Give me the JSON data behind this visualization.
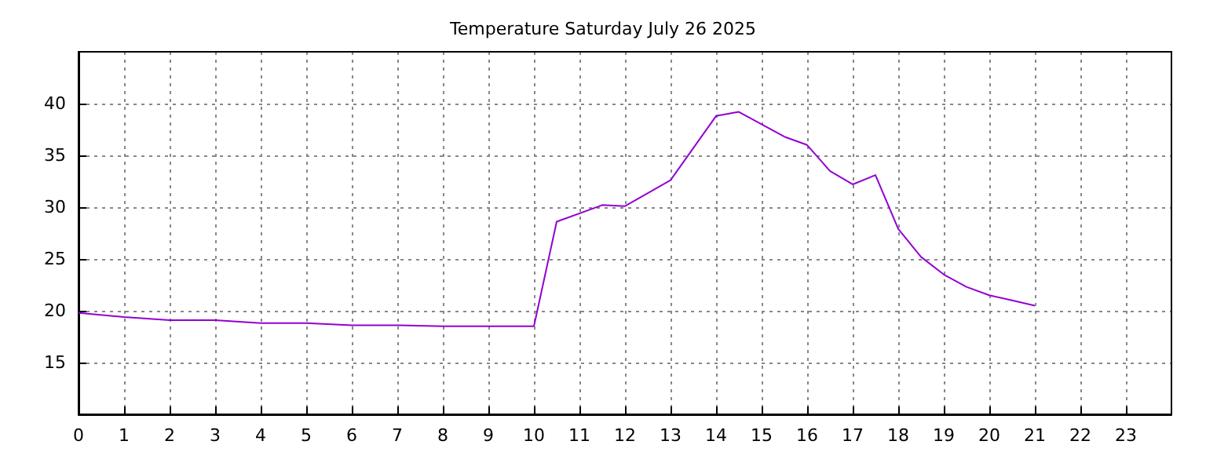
{
  "chart_data": {
    "type": "line",
    "title": "Temperature Saturday July 26 2025",
    "x": [
      0,
      1,
      2,
      3,
      4,
      5,
      6,
      7,
      8,
      9,
      10,
      10.5,
      11.5,
      12,
      13,
      14,
      14.5,
      15.5,
      16,
      16.5,
      17,
      17.5,
      18,
      18.5,
      19,
      19.5,
      20,
      20.5,
      21
    ],
    "series": [
      {
        "color": "#9400d3",
        "values": [
          19.8,
          19.4,
          19.1,
          19.1,
          18.8,
          18.8,
          18.6,
          18.6,
          18.5,
          18.5,
          18.5,
          28.6,
          30.2,
          30.1,
          32.6,
          38.8,
          39.2,
          36.8,
          36.0,
          33.5,
          32.2,
          33.1,
          27.9,
          25.2,
          23.5,
          22.3,
          21.5,
          21.0,
          20.5
        ]
      }
    ],
    "xlim": [
      0,
      24
    ],
    "xticks": [
      0,
      1,
      2,
      3,
      4,
      5,
      6,
      7,
      8,
      9,
      10,
      11,
      12,
      13,
      14,
      15,
      16,
      17,
      18,
      19,
      20,
      21,
      22,
      23
    ],
    "ylim": [
      10,
      45
    ],
    "yticks": [
      15,
      20,
      25,
      30,
      35,
      40
    ],
    "grid": true,
    "marker": "none",
    "line_style": "solid"
  }
}
